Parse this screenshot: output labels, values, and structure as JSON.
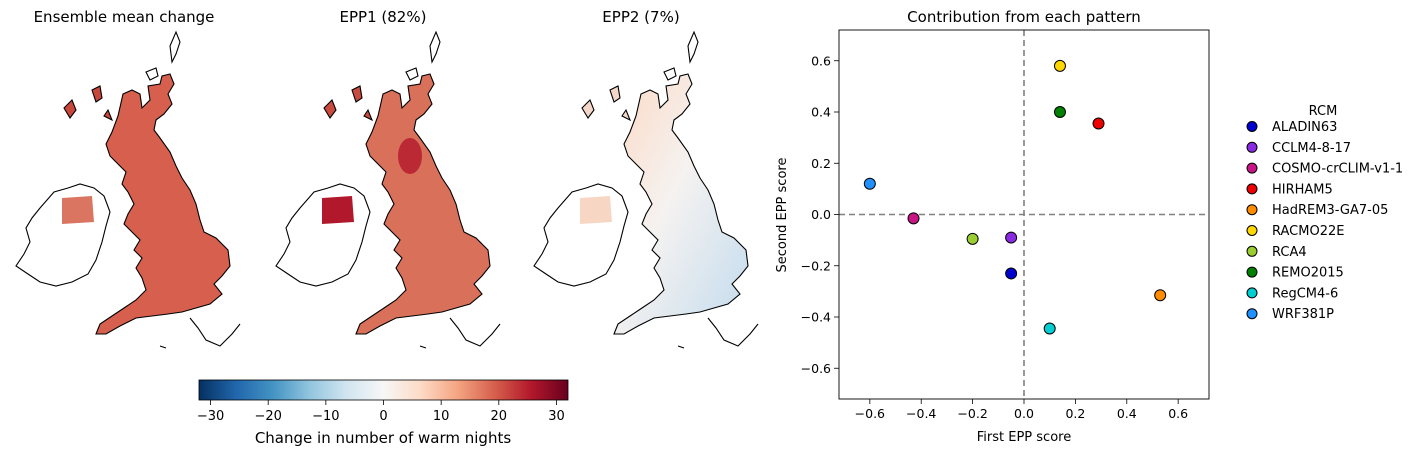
{
  "maps": [
    {
      "title": "Ensemble mean change",
      "style": "warm-strong"
    },
    {
      "title": "EPP1 (82%)",
      "style": "warm-varied"
    },
    {
      "title": "EPP2 (7%)",
      "style": "diverging"
    }
  ],
  "colorbar": {
    "label": "Change in number of warm nights",
    "range": [
      -32,
      32
    ],
    "ticks": [
      -30,
      -20,
      -10,
      0,
      10,
      20,
      30
    ],
    "tick_labels": [
      "−30",
      "−20",
      "−10",
      "0",
      "10",
      "20",
      "30"
    ],
    "colormap": "RdBu_r"
  },
  "chart_data": {
    "type": "scatter",
    "title": "Contribution from each pattern",
    "xlabel": "First EPP score",
    "ylabel": "Second EPP score",
    "xlim": [
      -0.72,
      0.72
    ],
    "ylim": [
      -0.72,
      0.72
    ],
    "xticks": [
      -0.6,
      -0.4,
      -0.2,
      0.0,
      0.2,
      0.4,
      0.6
    ],
    "xtick_labels": [
      "−0.6",
      "−0.4",
      "−0.2",
      "0.0",
      "0.2",
      "0.4",
      "0.6"
    ],
    "yticks": [
      -0.6,
      -0.4,
      -0.2,
      0.0,
      0.2,
      0.4,
      0.6
    ],
    "ytick_labels": [
      "−0.6",
      "−0.4",
      "−0.2",
      "0.0",
      "0.2",
      "0.4",
      "0.6"
    ],
    "reference_lines": {
      "x": 0,
      "y": 0,
      "style": "dashed",
      "color": "#808080"
    },
    "legend_title": "RCM",
    "legend_position": "right, outside",
    "series": [
      {
        "name": "ALADIN63",
        "color": "#0000cd",
        "x": -0.05,
        "y": -0.23
      },
      {
        "name": "CCLM4-8-17",
        "color": "#8a2be2",
        "x": -0.05,
        "y": -0.09
      },
      {
        "name": "COSMO-crCLIM-v1-1",
        "color": "#c71585",
        "x": -0.43,
        "y": -0.015
      },
      {
        "name": "HIRHAM5",
        "color": "#ee0000",
        "x": 0.29,
        "y": 0.355
      },
      {
        "name": "HadREM3-GA7-05",
        "color": "#ff8c00",
        "x": 0.53,
        "y": -0.315
      },
      {
        "name": "RACMO22E",
        "color": "#ffd700",
        "x": 0.14,
        "y": 0.58
      },
      {
        "name": "RCA4",
        "color": "#9acd32",
        "x": -0.2,
        "y": -0.095
      },
      {
        "name": "REMO2015",
        "color": "#008000",
        "x": 0.14,
        "y": 0.4
      },
      {
        "name": "RegCM4-6",
        "color": "#00ced1",
        "x": 0.1,
        "y": -0.445
      },
      {
        "name": "WRF381P",
        "color": "#1e90ff",
        "x": -0.6,
        "y": 0.12
      }
    ]
  }
}
